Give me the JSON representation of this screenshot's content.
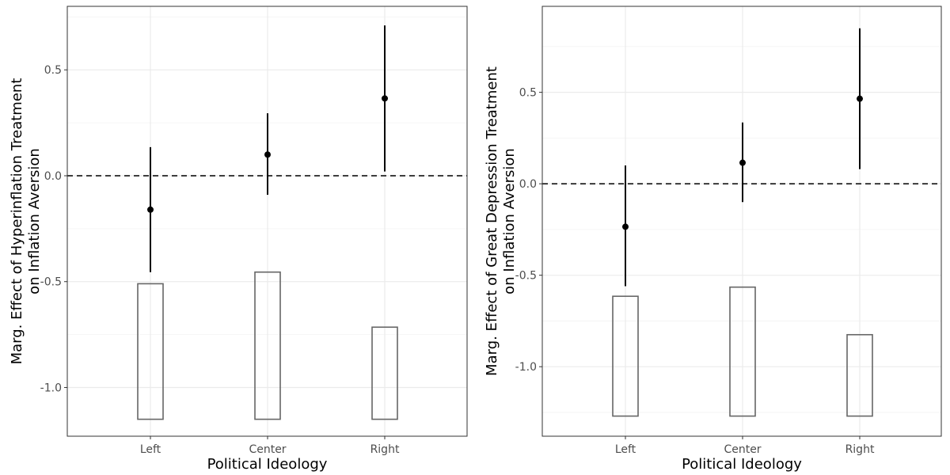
{
  "chart_data": [
    {
      "type": "scatter",
      "title": "",
      "xlabel": "Political Ideology",
      "ylabel_lines": [
        "Marg. Effect of Hyperinflation Treatment",
        "on Inflation Aversion"
      ],
      "categories": [
        "Left",
        "Center",
        "Right"
      ],
      "y_ticks": [
        0.5,
        0.0,
        -0.5,
        -1.0
      ],
      "y_tick_labels": [
        "0.5",
        "0.0",
        "-0.5",
        "-1.0"
      ],
      "ylim": [
        -1.23,
        0.8
      ],
      "reference_line": 0,
      "grid": true,
      "estimates": [
        -0.16,
        0.1,
        0.365
      ],
      "ci_lower": [
        -0.455,
        -0.09,
        0.02
      ],
      "ci_upper": [
        0.135,
        0.295,
        0.71
      ],
      "histogram_base": -1.15,
      "histogram_tops": [
        -0.51,
        -0.455,
        -0.715
      ]
    },
    {
      "type": "scatter",
      "title": "",
      "xlabel": "Political Ideology",
      "ylabel_lines": [
        "Marg. Effect of Great Depression Treatment",
        "on Inflation Aversion"
      ],
      "categories": [
        "Left",
        "Center",
        "Right"
      ],
      "y_ticks": [
        0.5,
        0.0,
        -0.5,
        -1.0
      ],
      "y_tick_labels": [
        "0.5",
        "0.0",
        "-0.5",
        "-1.0"
      ],
      "ylim": [
        -1.38,
        0.97
      ],
      "reference_line": 0,
      "grid": true,
      "estimates": [
        -0.235,
        0.115,
        0.465
      ],
      "ci_lower": [
        -0.56,
        -0.1,
        0.08
      ],
      "ci_upper": [
        0.1,
        0.335,
        0.85
      ],
      "histogram_base": -1.27,
      "histogram_tops": [
        -0.615,
        -0.565,
        -0.825
      ]
    }
  ]
}
